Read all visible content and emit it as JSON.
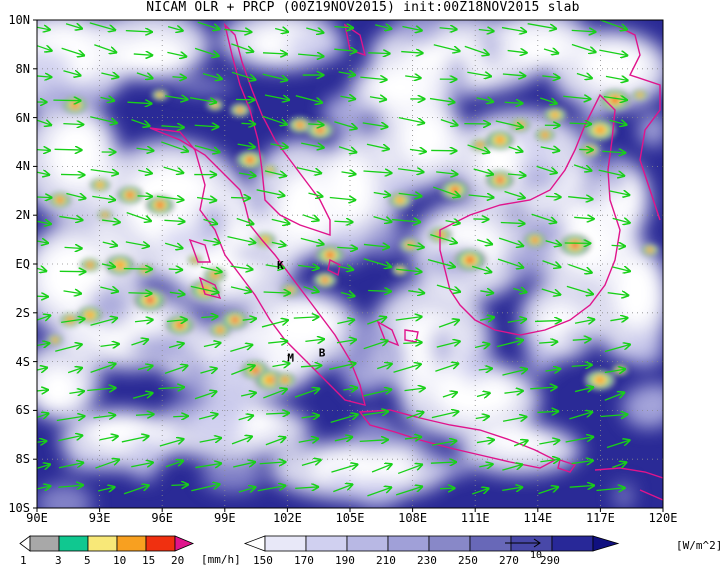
{
  "title": "NICAM OLR + PRCP (00Z19NOV2015) init:00Z18NOV2015 slab",
  "map": {
    "lat_labels": [
      "10N",
      "8N",
      "6N",
      "4N",
      "2N",
      "EQ",
      "2S",
      "4S",
      "6S",
      "8S",
      "10S"
    ],
    "lon_labels": [
      "90E",
      "93E",
      "96E",
      "99E",
      "102E",
      "105E",
      "108E",
      "111E",
      "114E",
      "117E",
      "120E"
    ],
    "place_markers": [
      {
        "text": "K",
        "lon": 101.5,
        "lat": -0.2
      },
      {
        "text": "M",
        "lon": 102.0,
        "lat": -4.0
      },
      {
        "text": "B",
        "lon": 103.5,
        "lat": -3.8
      }
    ],
    "vector_ref_label": "10"
  },
  "prcp_legend": {
    "labels": [
      "1",
      "3",
      "5",
      "10",
      "15",
      "20"
    ],
    "unit": "[mm/h]",
    "colors": [
      "#ffffff",
      "#a8a8a8",
      "#10c890",
      "#f8e878",
      "#f8a020",
      "#f03010",
      "#e0148c"
    ]
  },
  "olr_legend": {
    "labels": [
      "150",
      "170",
      "190",
      "210",
      "230",
      "250",
      "270",
      "290"
    ],
    "unit": "[W/m^2]",
    "colors": [
      "#ffffff",
      "#e8e8f8",
      "#d0d0f0",
      "#b8b8e4",
      "#a0a0d8",
      "#8888c8",
      "#6868b8",
      "#4848a8",
      "#282898",
      "#101080"
    ]
  },
  "colors": {
    "vectors": "#18d018",
    "coast": "#e0148c",
    "grid": "#888888"
  }
}
